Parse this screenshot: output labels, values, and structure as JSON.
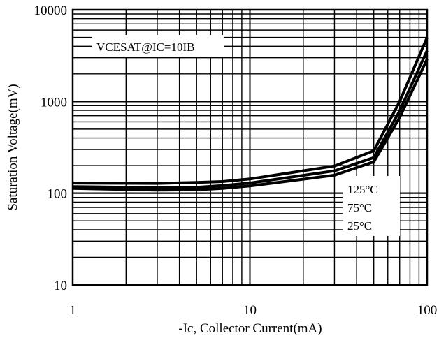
{
  "chart_data": {
    "type": "line",
    "title": "",
    "xlabel": "-Ic, Collector Current(mA)",
    "ylabel": "Saturation Voltage(mV)",
    "x_scale": "log",
    "y_scale": "log",
    "xlim": [
      1,
      100
    ],
    "ylim": [
      10,
      10000
    ],
    "x_ticks": [
      "1",
      "10",
      "100"
    ],
    "y_ticks": [
      "10",
      "100",
      "1000",
      "10000"
    ],
    "grid": true,
    "annotation": "VCESAT@IC=10IB",
    "legend_position": "bottom-right",
    "legend_labels": [
      "125°C",
      "75°C",
      "25°C"
    ],
    "series": [
      {
        "name": "125°C",
        "x": [
          1,
          3,
          5,
          7,
          10,
          30,
          50,
          70,
          100
        ],
        "y": [
          129,
          128,
          131,
          134,
          143,
          198,
          290,
          1000,
          5000
        ]
      },
      {
        "name": "75°C",
        "x": [
          1,
          3,
          5,
          7,
          10,
          30,
          50,
          70,
          100
        ],
        "y": [
          118,
          115,
          116,
          121,
          129,
          175,
          245,
          790,
          3600
        ]
      },
      {
        "name": "25°C",
        "x": [
          1,
          3,
          5,
          7,
          10,
          30,
          50,
          70,
          100
        ],
        "y": [
          113,
          108,
          109,
          113,
          120,
          157,
          220,
          670,
          2900
        ]
      }
    ]
  }
}
